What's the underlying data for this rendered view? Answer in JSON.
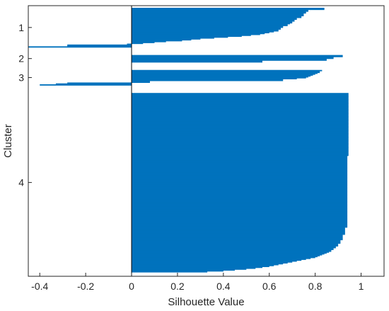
{
  "chart_data": {
    "type": "bar",
    "orientation": "horizontal",
    "xlabel": "Silhouette Value",
    "ylabel": "Cluster",
    "xlim": [
      -0.45,
      1.1
    ],
    "x_ticks": [
      "-0.4",
      "-0.2",
      "0",
      "0.2",
      "0.4",
      "0.6",
      "0.8",
      "1"
    ],
    "x_tick_values": [
      -0.4,
      -0.2,
      0,
      0.2,
      0.4,
      0.6,
      0.8,
      1
    ],
    "bar_color": "#0072bd",
    "grid": false,
    "cluster_labels": [
      "1",
      "2",
      "3",
      "4"
    ],
    "clusters": [
      {
        "label": "1",
        "values": [
          0.84,
          0.84,
          0.77,
          0.77,
          0.76,
          0.76,
          0.75,
          0.75,
          0.75,
          0.74,
          0.74,
          0.72,
          0.72,
          0.71,
          0.71,
          0.7,
          0.7,
          0.69,
          0.68,
          0.68,
          0.66,
          0.66,
          0.65,
          0.65,
          0.64,
          0.64,
          0.62,
          0.6,
          0.58,
          0.56,
          0.52,
          0.48,
          0.42,
          0.36,
          0.3,
          0.26,
          0.22,
          0.15,
          0.1,
          0.05,
          -0.02,
          -0.28,
          -0.28,
          -0.45
        ]
      },
      {
        "label": "2",
        "values": [
          0.92,
          0.92,
          0.88,
          0.88,
          0.85,
          0.85,
          0.57,
          0.57
        ]
      },
      {
        "label": "3",
        "values": [
          0.83,
          0.82,
          0.82,
          0.81,
          0.8,
          0.79,
          0.78,
          0.77,
          0.76,
          0.72,
          0.66,
          0.66,
          0.08,
          0.08,
          -0.28,
          -0.33,
          -0.4
        ]
      },
      {
        "label": "4",
        "values": [
          0.945,
          0.945,
          0.945,
          0.945,
          0.945,
          0.945,
          0.945,
          0.945,
          0.945,
          0.945,
          0.945,
          0.945,
          0.945,
          0.945,
          0.945,
          0.945,
          0.945,
          0.945,
          0.945,
          0.945,
          0.945,
          0.945,
          0.945,
          0.945,
          0.945,
          0.945,
          0.945,
          0.945,
          0.945,
          0.945,
          0.945,
          0.945,
          0.945,
          0.945,
          0.945,
          0.945,
          0.945,
          0.945,
          0.945,
          0.945,
          0.945,
          0.945,
          0.945,
          0.945,
          0.945,
          0.945,
          0.945,
          0.945,
          0.945,
          0.945,
          0.945,
          0.945,
          0.945,
          0.945,
          0.945,
          0.945,
          0.945,
          0.945,
          0.945,
          0.945,
          0.945,
          0.945,
          0.945,
          0.945,
          0.945,
          0.945,
          0.945,
          0.945,
          0.945,
          0.945,
          0.94,
          0.94,
          0.94,
          0.94,
          0.94,
          0.94,
          0.94,
          0.94,
          0.94,
          0.94,
          0.94,
          0.94,
          0.94,
          0.94,
          0.94,
          0.94,
          0.94,
          0.94,
          0.94,
          0.94,
          0.94,
          0.94,
          0.94,
          0.94,
          0.94,
          0.94,
          0.94,
          0.94,
          0.94,
          0.94,
          0.94,
          0.94,
          0.94,
          0.94,
          0.94,
          0.94,
          0.94,
          0.94,
          0.94,
          0.94,
          0.94,
          0.94,
          0.94,
          0.94,
          0.94,
          0.94,
          0.94,
          0.94,
          0.94,
          0.94,
          0.94,
          0.94,
          0.94,
          0.94,
          0.94,
          0.94,
          0.94,
          0.94,
          0.94,
          0.94,
          0.94,
          0.94,
          0.94,
          0.94,
          0.94,
          0.94,
          0.94,
          0.94,
          0.94,
          0.94,
          0.94,
          0.94,
          0.94,
          0.94,
          0.94,
          0.94,
          0.94,
          0.94,
          0.94,
          0.94,
          0.93,
          0.93,
          0.93,
          0.93,
          0.93,
          0.93,
          0.93,
          0.93,
          0.92,
          0.92,
          0.92,
          0.92,
          0.92,
          0.92,
          0.91,
          0.91,
          0.91,
          0.91,
          0.9,
          0.9,
          0.9,
          0.89,
          0.89,
          0.88,
          0.88,
          0.87,
          0.87,
          0.86,
          0.85,
          0.84,
          0.83,
          0.82,
          0.81,
          0.8,
          0.78,
          0.76,
          0.74,
          0.72,
          0.7,
          0.68,
          0.66,
          0.64,
          0.62,
          0.6,
          0.57,
          0.54,
          0.5,
          0.45,
          0.4,
          0.33
        ]
      }
    ]
  }
}
